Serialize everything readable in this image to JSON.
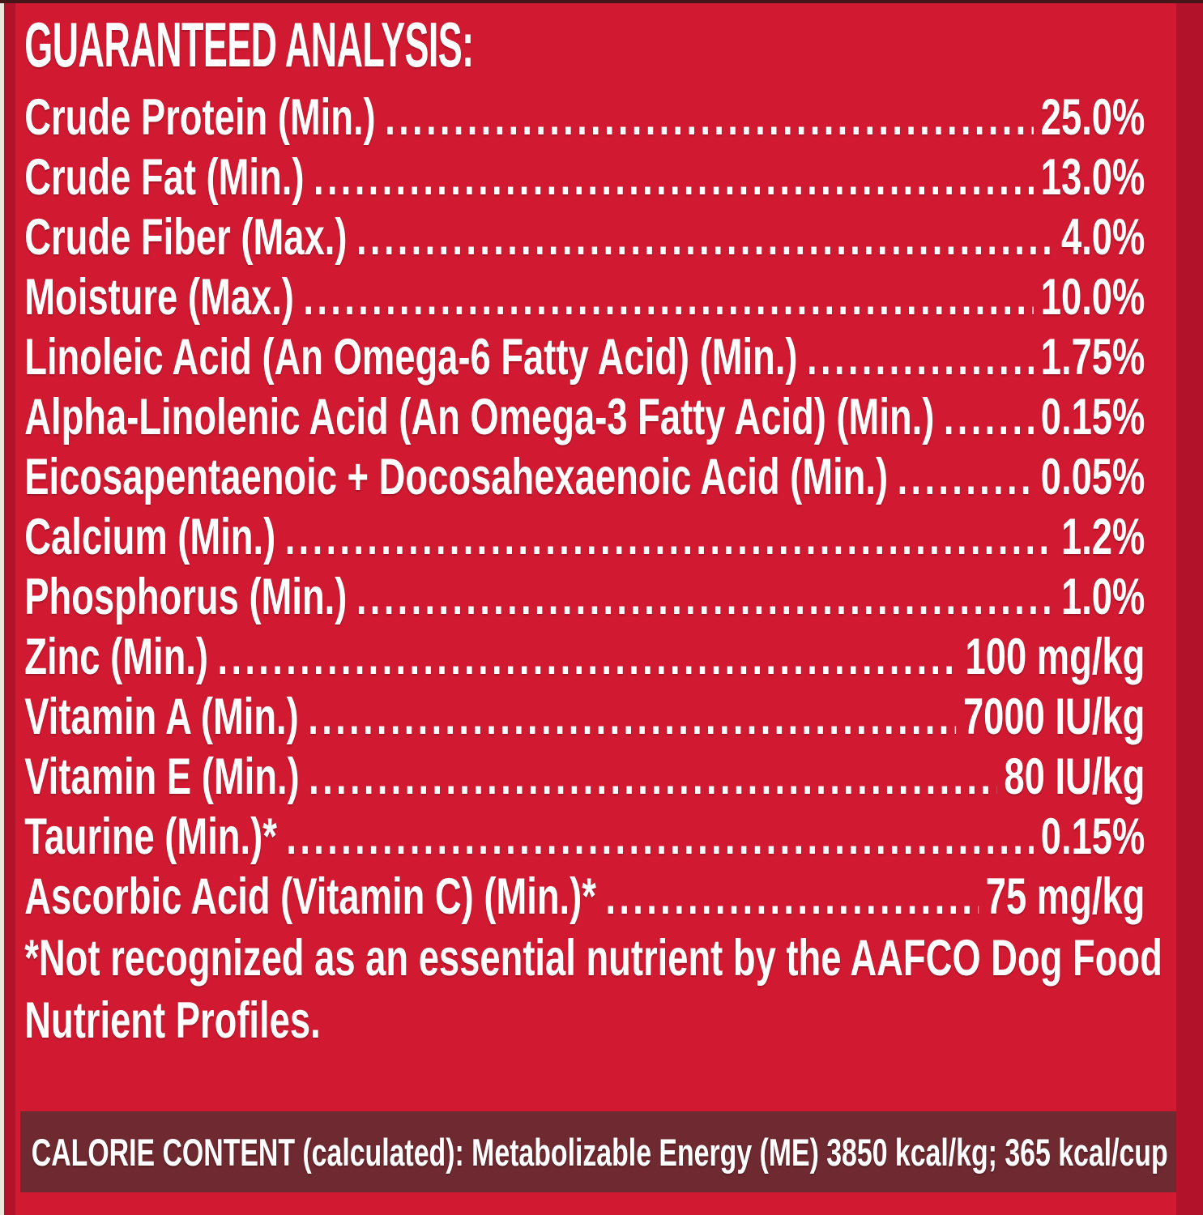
{
  "colors": {
    "background_red": "#d11a31",
    "edge_dark_red": "#b2122a",
    "edge_top_dark": "#45161a",
    "edge_left_light": "#ece7dc",
    "calorie_bar_maroon": "#6e2a30",
    "text_white": "#ffffff"
  },
  "analysis": {
    "title": "GUARANTEED ANALYSIS:",
    "rows": [
      {
        "label": "Crude Protein (Min.)",
        "value": "25.0%"
      },
      {
        "label": "Crude Fat (Min.)",
        "value": "13.0%"
      },
      {
        "label": "Crude Fiber (Max.)",
        "value": "4.0%"
      },
      {
        "label": "Moisture (Max.)",
        "value": "10.0%"
      },
      {
        "label": "Linoleic Acid (An Omega-6 Fatty Acid) (Min.)",
        "value": "1.75%"
      },
      {
        "label": "Alpha-Linolenic Acid (An Omega-3 Fatty Acid) (Min.)",
        "value": "0.15%"
      },
      {
        "label": "Eicosapentaenoic + Docosahexaenoic Acid (Min.)",
        "value": "0.05%"
      },
      {
        "label": "Calcium (Min.)",
        "value": "1.2%"
      },
      {
        "label": "Phosphorus (Min.)",
        "value": "1.0%"
      },
      {
        "label": "Zinc (Min.)",
        "value": "100 mg/kg"
      },
      {
        "label": "Vitamin A (Min.)",
        "value": "7000 IU/kg"
      },
      {
        "label": "Vitamin E (Min.)",
        "value": "80 IU/kg"
      },
      {
        "label": "Taurine (Min.)*",
        "value": "0.15%"
      },
      {
        "label": "Ascorbic Acid (Vitamin C) (Min.)*",
        "value": "75 mg/kg"
      }
    ],
    "footnote_line1": "*Not recognized as an essential nutrient by the AAFCO Dog Food",
    "footnote_line2": "Nutrient Profiles."
  },
  "calorie_bar": {
    "text": "CALORIE CONTENT (calculated): Metabolizable Energy (ME) 3850 kcal/kg; 365 kcal/cup"
  }
}
